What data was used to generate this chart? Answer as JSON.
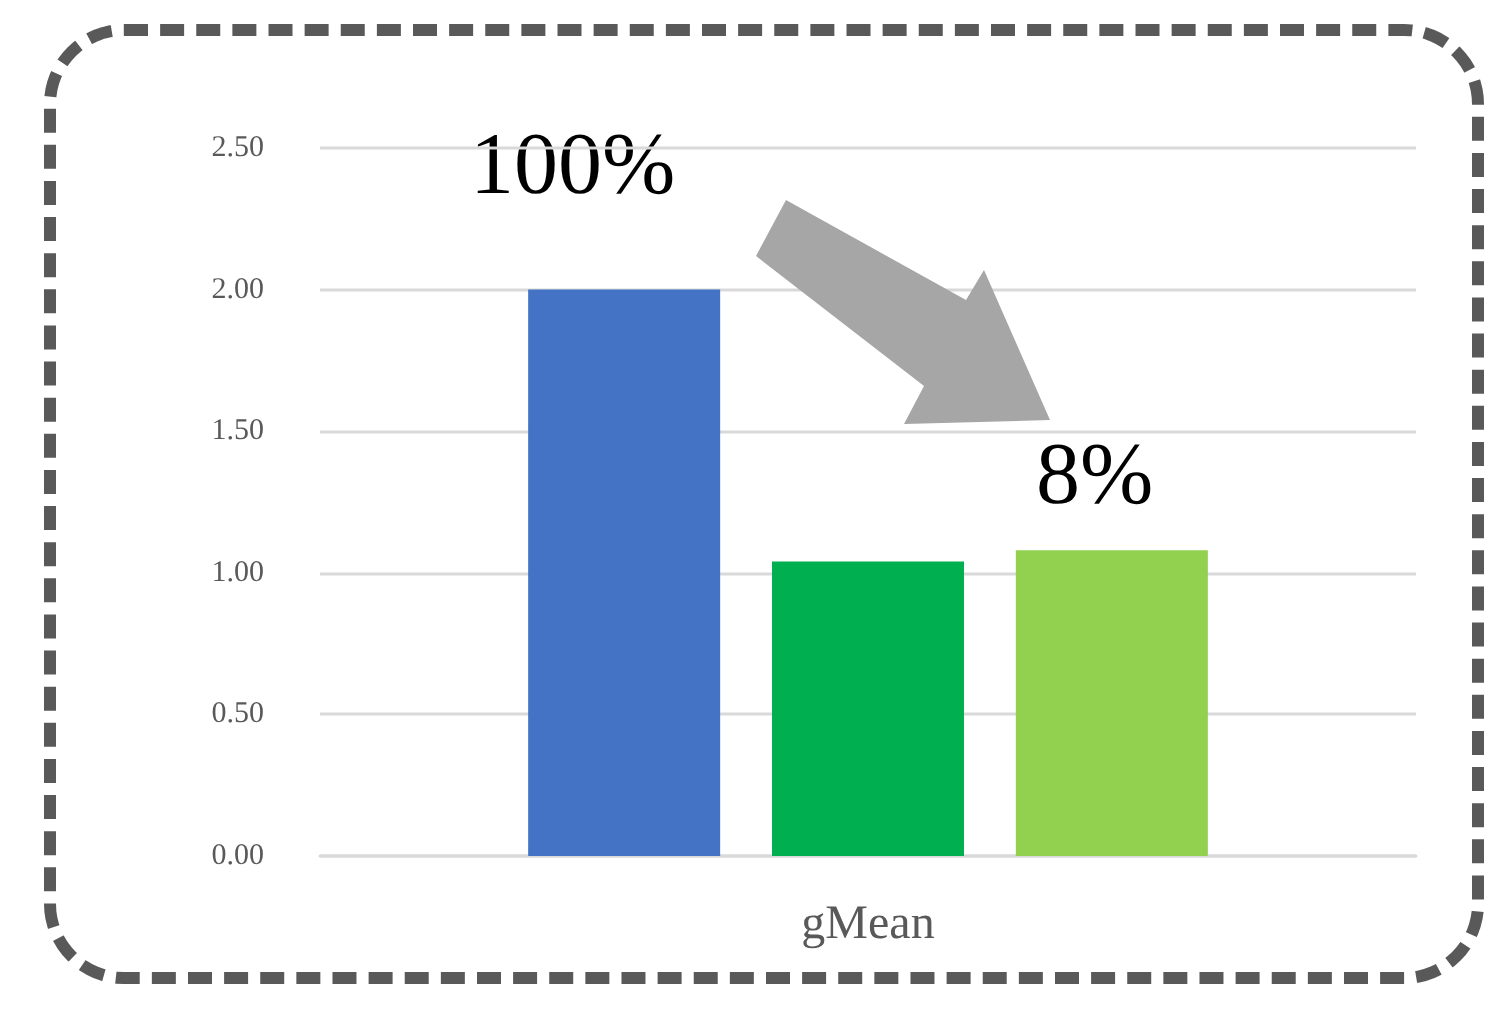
{
  "chart_data": {
    "type": "bar",
    "categories": [
      "gMean"
    ],
    "series": [
      {
        "color": "#4472c4",
        "values": [
          2.0
        ]
      },
      {
        "color": "#00b050",
        "values": [
          1.04
        ]
      },
      {
        "color": "#92d050",
        "values": [
          1.08
        ]
      }
    ],
    "annotations": [
      "100%",
      "8%"
    ],
    "ylim": [
      0,
      2.5
    ],
    "yticks": [
      {
        "value": 0,
        "label": "0.00"
      },
      {
        "value": 0.5,
        "label": "0.50"
      },
      {
        "value": 1,
        "label": "1.00"
      },
      {
        "value": 1.5,
        "label": "1.50"
      },
      {
        "value": 2,
        "label": "2.00"
      },
      {
        "value": 2.5,
        "label": "2.50"
      }
    ],
    "grid": "y"
  }
}
